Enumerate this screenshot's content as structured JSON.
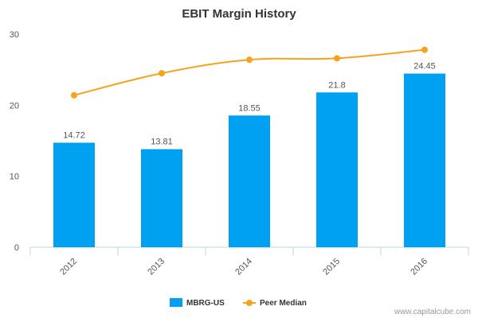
{
  "chart_data": {
    "type": "bar",
    "title": "EBIT Margin History",
    "categories": [
      "2012",
      "2013",
      "2014",
      "2015",
      "2016"
    ],
    "series": [
      {
        "name": "MBRG-US",
        "type": "bar",
        "color": "#00a1f1",
        "values": [
          14.72,
          13.81,
          18.55,
          21.8,
          24.45
        ],
        "labels": [
          "14.72",
          "13.81",
          "18.55",
          "21.8",
          "24.45"
        ]
      },
      {
        "name": "Peer Median",
        "type": "line",
        "color": "#f7a21b",
        "values": [
          21.4,
          24.5,
          26.4,
          26.6,
          27.8
        ]
      }
    ],
    "ylim": [
      0,
      30
    ],
    "yticks": [
      "0",
      "10",
      "20",
      "30"
    ],
    "grid": false,
    "legend": "bottom-center"
  },
  "credit": "www.capitalcube.com"
}
